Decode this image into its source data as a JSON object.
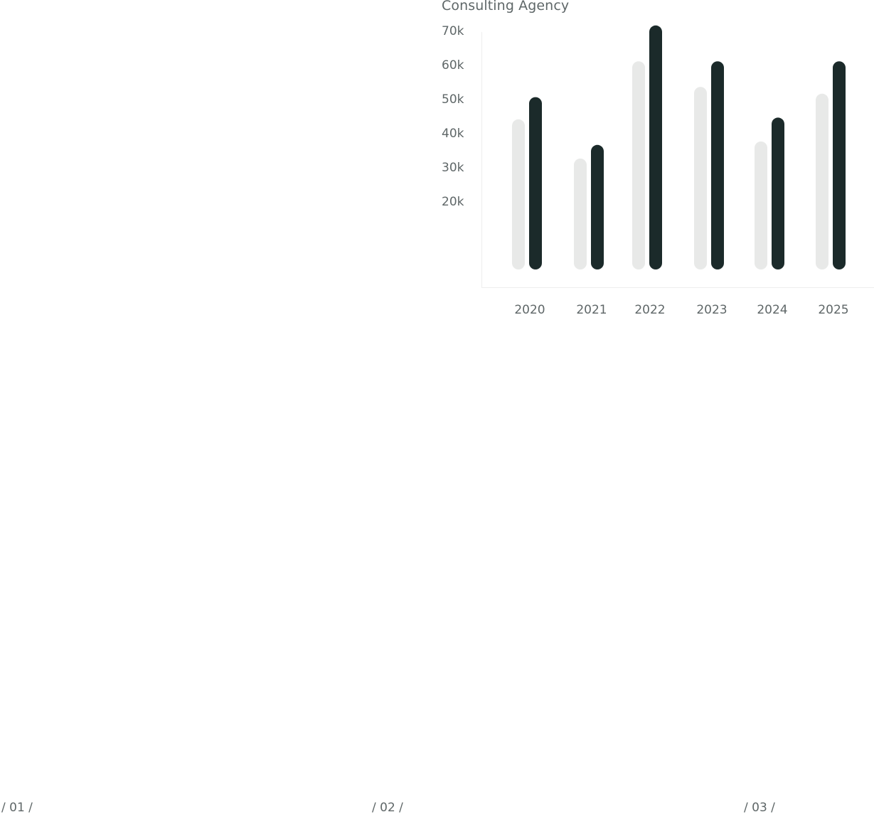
{
  "chart": {
    "title": "Consulting Agency"
  },
  "chart_data": {
    "type": "bar",
    "title": "Consulting Agency",
    "xlabel": "",
    "ylabel": "",
    "categories": [
      "2020",
      "2021",
      "2022",
      "2023",
      "2024",
      "2025"
    ],
    "series": [
      {
        "values": [
          44000,
          32500,
          61000,
          53500,
          37500,
          51500
        ],
        "color": "#e8e9e8"
      },
      {
        "values": [
          50500,
          36500,
          71500,
          61000,
          44500,
          61000
        ],
        "color": "#1b2a2a"
      }
    ],
    "yticks": [
      20000,
      30000,
      40000,
      50000,
      60000,
      70000
    ],
    "ytick_labels": [
      "20k",
      "30k",
      "40k",
      "50k",
      "60k",
      "70k"
    ],
    "ylim": [
      0,
      75000
    ],
    "grid": false,
    "legend": "none"
  },
  "pagination": {
    "markers": [
      "/ 01 /",
      "/ 02 /",
      "/ 03 /"
    ]
  },
  "colors": {
    "background": "#ffffff",
    "text": "#5f6768",
    "axis": "#eeeeee",
    "bar_light": "#e8e9e8",
    "bar_dark": "#1b2a2a"
  }
}
